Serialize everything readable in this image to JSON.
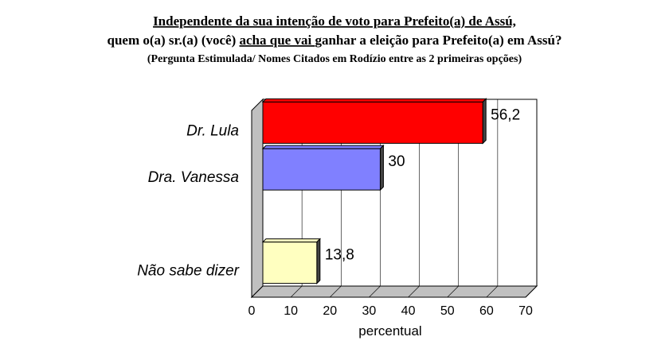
{
  "chart_data": {
    "type": "bar",
    "orientation": "horizontal",
    "title": [
      "Independente da sua intenção de voto para Prefeito(a) de Assú,",
      [
        "quem o(a) sr.(a) (você) ",
        "acha que vai ",
        "ganhar a eleição para Prefeito(a) em Assú?"
      ]
    ],
    "subtitle": "(Pergunta Estimulada/ Nomes Citados em Rodízio entre as 2 primeiras opções)",
    "categories": [
      "Dr. Lula",
      "Dra. Vanessa",
      null,
      "Não sabe dizer"
    ],
    "values": [
      56.2,
      30,
      null,
      13.8
    ],
    "value_labels": [
      "56,2",
      "30",
      null,
      "13,8"
    ],
    "colors": [
      "#ff0000",
      "#8080ff",
      null,
      "#ffffc0"
    ],
    "xlabel": "percentual",
    "xlim": [
      0,
      70
    ],
    "xticks": [
      0,
      10,
      20,
      30,
      40,
      50,
      60,
      70
    ],
    "grid": true
  }
}
